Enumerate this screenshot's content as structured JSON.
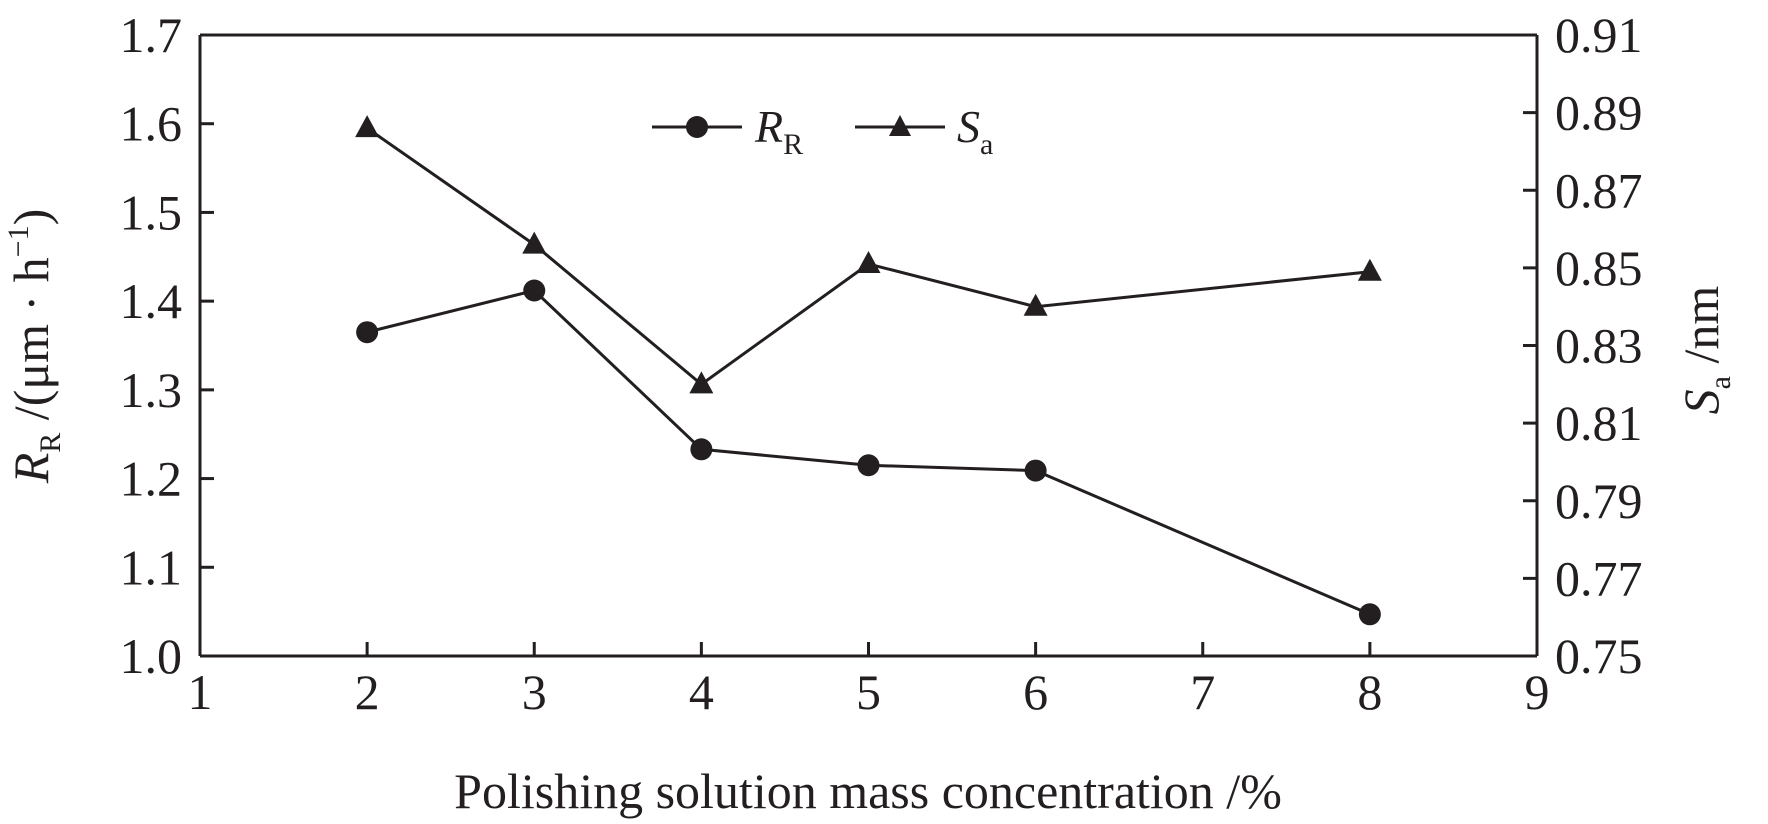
{
  "chart_data": {
    "type": "line",
    "x": [
      2,
      3,
      4,
      5,
      6,
      8
    ],
    "xlabel": "Polishing solution mass concentration /%",
    "xlim": [
      1,
      9
    ],
    "xticks": [
      "1",
      "2",
      "3",
      "4",
      "5",
      "6",
      "7",
      "8",
      "9"
    ],
    "ylabel_left": {
      "symbol": "R",
      "subscript": "R",
      "unit_prefix": " /(μm · h",
      "unit_sup": "−1",
      "unit_suffix": ")"
    },
    "ylim_left": [
      1.0,
      1.7
    ],
    "yticks_left": [
      "1.0",
      "1.1",
      "1.2",
      "1.3",
      "1.4",
      "1.5",
      "1.6",
      "1.7"
    ],
    "ylabel_right": {
      "symbol": "S",
      "subscript": "a",
      "unit_suffix": " /nm"
    },
    "ylim_right": [
      0.75,
      0.91
    ],
    "yticks_right": [
      "0.75",
      "0.77",
      "0.79",
      "0.81",
      "0.83",
      "0.85",
      "0.87",
      "0.89",
      "0.91"
    ],
    "grid": false,
    "legend_position": "top-center",
    "series": [
      {
        "name_symbol": "R",
        "name_subscript": "R",
        "axis": "left",
        "marker": "circle",
        "values": [
          1.365,
          1.412,
          1.233,
          1.215,
          1.209,
          1.047
        ]
      },
      {
        "name_symbol": "S",
        "name_subscript": "a",
        "axis": "right",
        "marker": "triangle",
        "values": [
          0.886,
          0.856,
          0.82,
          0.851,
          0.84,
          0.849
        ]
      }
    ],
    "colors": {
      "ink": "#231f20",
      "background": "#ffffff"
    }
  }
}
